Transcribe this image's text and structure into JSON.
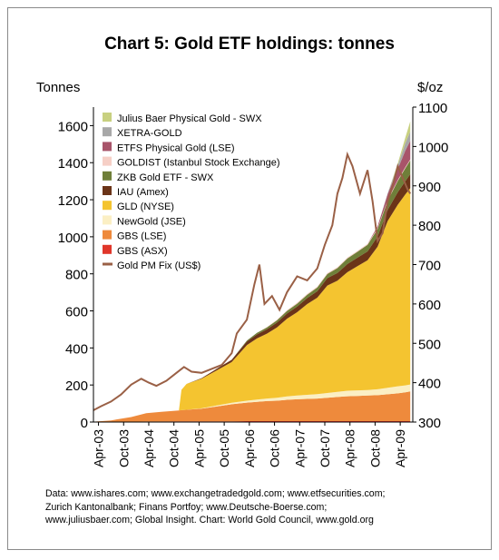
{
  "page": {
    "title": "Chart 5: Gold ETF holdings: tonnes",
    "left_axis_unit": "Tonnes",
    "right_axis_unit": "$/oz",
    "source_lines": [
      "Data: www.ishares.com; www.exchangetradedgold.com; www.etfsecurities.com;",
      "Zurich Kantonalbank; Finans Portfoy; www.Deutsche-Boerse.com;",
      "www.juliusbaer.com; Global Insight. Chart: World Gold Council, www.gold.org"
    ]
  },
  "chart_data": {
    "type": "area",
    "title": "Chart 5: Gold ETF holdings: tonnes",
    "ylabel": "Tonnes",
    "y2label": "$/oz",
    "ylim": [
      0,
      1700
    ],
    "y2lim": [
      300,
      1100
    ],
    "yticks": [
      "0",
      "200",
      "400",
      "600",
      "800",
      "1000",
      "1200",
      "1400",
      "1600"
    ],
    "y2ticks": [
      "300",
      "400",
      "500",
      "600",
      "700",
      "800",
      "900",
      "1000",
      "1100"
    ],
    "xlim": [
      2003.15,
      2009.5
    ],
    "xticks": [
      {
        "label": "Apr-03",
        "x": 2003.25
      },
      {
        "label": "Oct-03",
        "x": 2003.75
      },
      {
        "label": "Apr-04",
        "x": 2004.25
      },
      {
        "label": "Oct-04",
        "x": 2004.75
      },
      {
        "label": "Apr-05",
        "x": 2005.25
      },
      {
        "label": "Oct-05",
        "x": 2005.75
      },
      {
        "label": "Apr-06",
        "x": 2006.25
      },
      {
        "label": "Oct-06",
        "x": 2006.75
      },
      {
        "label": "Apr-07",
        "x": 2007.25
      },
      {
        "label": "Oct-07",
        "x": 2007.75
      },
      {
        "label": "Apr-08",
        "x": 2008.25
      },
      {
        "label": "Oct-08",
        "x": 2008.75
      },
      {
        "label": "Apr-09",
        "x": 2009.25
      }
    ],
    "legend_position": "top-left",
    "legend": [
      {
        "label": "Julius Baer Physical Gold - SWX",
        "color": "#c8d080",
        "kind": "area"
      },
      {
        "label": "XETRA-GOLD",
        "color": "#a8a8a8",
        "kind": "area"
      },
      {
        "label": "ETFS Physical Gold (LSE)",
        "color": "#a8546a",
        "kind": "area"
      },
      {
        "label": "GOLDIST (Istanbul Stock Exchange)",
        "color": "#f6cfc6",
        "kind": "area"
      },
      {
        "label": "ZKB Gold ETF - SWX",
        "color": "#6f7f39",
        "kind": "area"
      },
      {
        "label": "IAU (Amex)",
        "color": "#6b3418",
        "kind": "area"
      },
      {
        "label": "GLD (NYSE)",
        "color": "#f4c430",
        "kind": "area"
      },
      {
        "label": "NewGold (JSE)",
        "color": "#fbefc4",
        "kind": "area"
      },
      {
        "label": "GBS (LSE)",
        "color": "#ee8a3c",
        "kind": "area"
      },
      {
        "label": "GBS (ASX)",
        "color": "#e0362a",
        "kind": "area"
      },
      {
        "label": "Gold PM Fix (US$)",
        "color": "#9a6046",
        "kind": "line"
      }
    ],
    "x": [
      2003.15,
      2003.5,
      2003.9,
      2004.2,
      2004.5,
      2004.85,
      2004.9,
      2005.0,
      2005.3,
      2005.6,
      2005.9,
      2006.2,
      2006.4,
      2006.6,
      2006.8,
      2007.0,
      2007.2,
      2007.4,
      2007.6,
      2007.8,
      2008.0,
      2008.2,
      2008.4,
      2008.6,
      2008.8,
      2009.0,
      2009.2,
      2009.35,
      2009.45
    ],
    "series": [
      {
        "name": "GBS (ASX)",
        "color": "#e0362a",
        "values": [
          0,
          1,
          2,
          3,
          3,
          4,
          4,
          4,
          4,
          4,
          4,
          5,
          5,
          5,
          5,
          5,
          5,
          5,
          5,
          5,
          5,
          5,
          5,
          5,
          5,
          5,
          5,
          5,
          5
        ]
      },
      {
        "name": "GBS (LSE)",
        "color": "#ee8a3c",
        "values": [
          2,
          8,
          25,
          45,
          52,
          58,
          60,
          62,
          68,
          80,
          92,
          100,
          104,
          108,
          110,
          115,
          118,
          120,
          122,
          126,
          130,
          134,
          136,
          138,
          140,
          145,
          150,
          155,
          160
        ]
      },
      {
        "name": "NewGold (JSE)",
        "color": "#fbefc4",
        "values": [
          0,
          0,
          0,
          0,
          0,
          0,
          0,
          0,
          2,
          5,
          8,
          10,
          12,
          14,
          16,
          18,
          20,
          22,
          24,
          26,
          28,
          30,
          30,
          30,
          32,
          35,
          38,
          38,
          38
        ]
      },
      {
        "name": "GLD (NYSE)",
        "color": "#f4c430",
        "values": [
          0,
          0,
          0,
          0,
          0,
          0,
          110,
          140,
          160,
          190,
          220,
          300,
          330,
          350,
          380,
          420,
          450,
          490,
          520,
          580,
          600,
          640,
          670,
          700,
          770,
          900,
          980,
          1030,
          1060
        ]
      },
      {
        "name": "IAU (Amex)",
        "color": "#6b3418",
        "values": [
          0,
          0,
          0,
          0,
          0,
          0,
          0,
          0,
          3,
          8,
          12,
          20,
          22,
          24,
          26,
          28,
          30,
          32,
          35,
          40,
          42,
          44,
          46,
          48,
          55,
          60,
          68,
          72,
          75
        ]
      },
      {
        "name": "ZKB Gold ETF - SWX",
        "color": "#6f7f39",
        "values": [
          0,
          0,
          0,
          0,
          0,
          0,
          0,
          0,
          0,
          0,
          0,
          5,
          8,
          10,
          12,
          14,
          16,
          18,
          20,
          22,
          26,
          30,
          32,
          36,
          40,
          50,
          60,
          70,
          75
        ]
      },
      {
        "name": "GOLDIST (Istanbul Stock Exchange)",
        "color": "#f6cfc6",
        "values": [
          0,
          0,
          0,
          0,
          0,
          0,
          0,
          0,
          0,
          0,
          0,
          0,
          0,
          2,
          3,
          4,
          5,
          5,
          5,
          5,
          5,
          5,
          5,
          5,
          5,
          5,
          5,
          5,
          5
        ]
      },
      {
        "name": "ETFS Physical Gold (LSE)",
        "color": "#a8546a",
        "values": [
          0,
          0,
          0,
          0,
          0,
          0,
          0,
          0,
          0,
          0,
          0,
          0,
          0,
          0,
          0,
          0,
          0,
          0,
          0,
          0,
          0,
          0,
          0,
          0,
          10,
          30,
          60,
          90,
          100
        ]
      },
      {
        "name": "XETRA-GOLD",
        "color": "#a8a8a8",
        "values": [
          0,
          0,
          0,
          0,
          0,
          0,
          0,
          0,
          0,
          0,
          0,
          0,
          0,
          0,
          0,
          0,
          0,
          0,
          0,
          0,
          0,
          0,
          0,
          0,
          0,
          5,
          20,
          40,
          50
        ]
      },
      {
        "name": "Julius Baer Physical Gold - SWX",
        "color": "#c8d080",
        "values": [
          0,
          0,
          0,
          0,
          0,
          0,
          0,
          0,
          0,
          0,
          0,
          0,
          0,
          0,
          0,
          0,
          0,
          0,
          0,
          0,
          0,
          0,
          0,
          0,
          0,
          0,
          10,
          30,
          55
        ]
      }
    ],
    "price_series": {
      "name": "Gold PM Fix (US$)",
      "color": "#9a6046",
      "axis": "right",
      "x": [
        2003.15,
        2003.3,
        2003.5,
        2003.7,
        2003.9,
        2004.1,
        2004.25,
        2004.4,
        2004.6,
        2004.8,
        2004.95,
        2005.1,
        2005.3,
        2005.5,
        2005.7,
        2005.9,
        2006.0,
        2006.2,
        2006.35,
        2006.45,
        2006.55,
        2006.7,
        2006.85,
        2007.0,
        2007.2,
        2007.4,
        2007.6,
        2007.75,
        2007.9,
        2008.0,
        2008.1,
        2008.2,
        2008.3,
        2008.45,
        2008.6,
        2008.7,
        2008.8,
        2008.9,
        2009.0,
        2009.1,
        2009.2,
        2009.3,
        2009.4,
        2009.45
      ],
      "values": [
        330,
        340,
        352,
        370,
        395,
        410,
        400,
        392,
        405,
        425,
        440,
        428,
        425,
        435,
        445,
        475,
        525,
        560,
        650,
        700,
        600,
        620,
        585,
        630,
        670,
        660,
        690,
        750,
        800,
        880,
        920,
        980,
        950,
        880,
        940,
        860,
        760,
        780,
        860,
        900,
        950,
        920,
        890,
        880
      ]
    }
  }
}
